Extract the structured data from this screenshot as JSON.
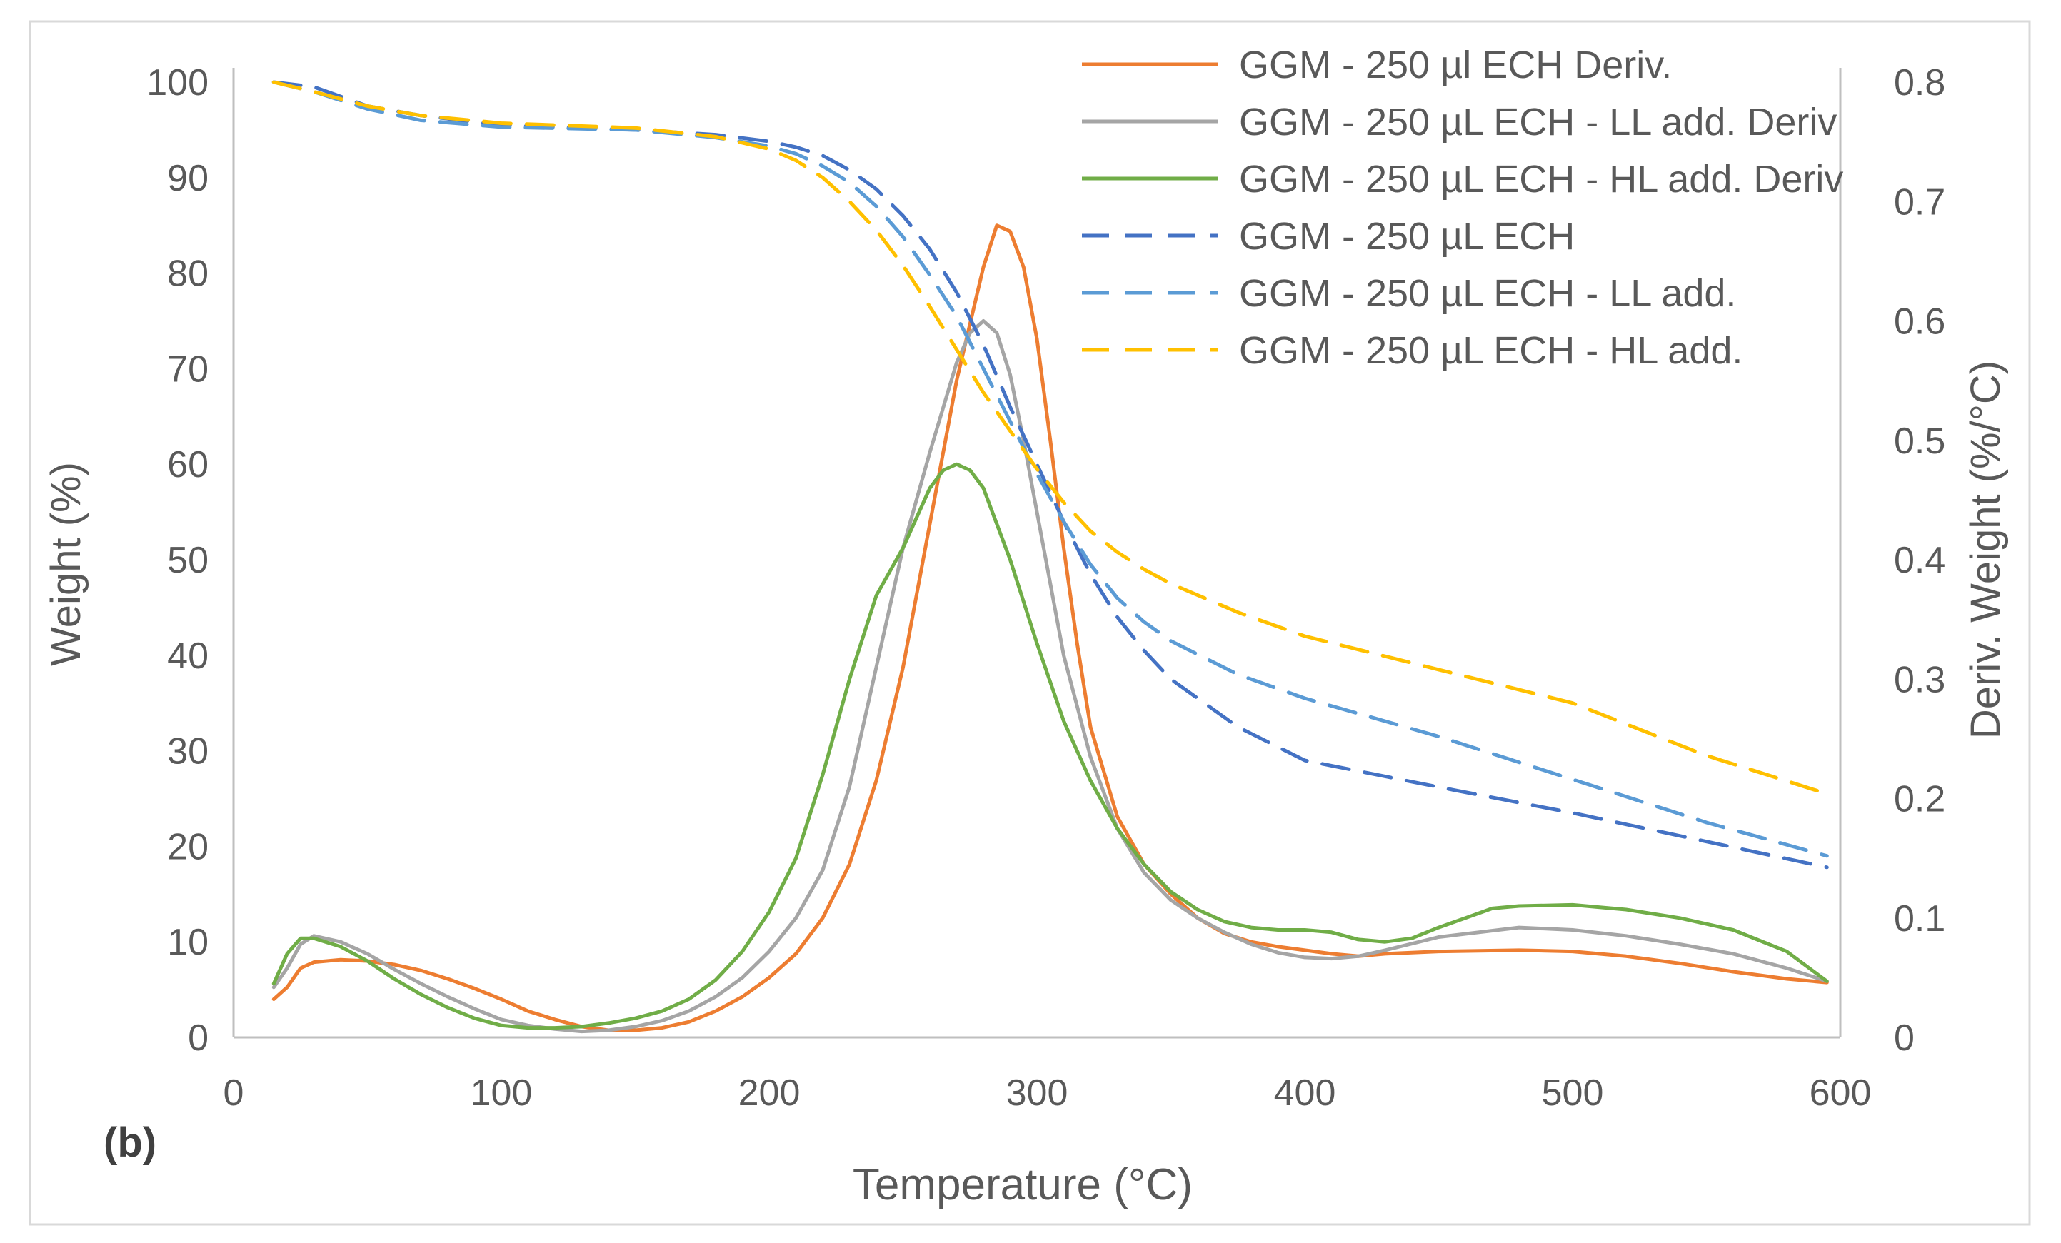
{
  "chart_data": {
    "type": "line",
    "panel_label": "(b)",
    "xlabel": "Temperature (°C)",
    "ylabel": "Weight (%)",
    "y2label": "Deriv. Weight (%/°C)",
    "xlim": [
      0,
      600
    ],
    "ylim": [
      0,
      100
    ],
    "y2lim": [
      0,
      0.8
    ],
    "x_ticks": [
      "0",
      "100",
      "200",
      "300",
      "400",
      "500",
      "600"
    ],
    "y_ticks": [
      "0",
      "10",
      "20",
      "30",
      "40",
      "50",
      "60",
      "70",
      "80",
      "90",
      "100"
    ],
    "y2_ticks": [
      "0",
      "0.1",
      "0.2",
      "0.3",
      "0.4",
      "0.5",
      "0.6",
      "0.7",
      "0.8"
    ],
    "legend_position": "top-right",
    "series": [
      {
        "name": "GGM - 250 µl ECH Deriv.",
        "axis": "right",
        "dash": false,
        "color": "#ED7D31",
        "x": [
          15,
          20,
          25,
          30,
          40,
          50,
          60,
          70,
          80,
          90,
          100,
          110,
          120,
          130,
          140,
          150,
          160,
          170,
          180,
          190,
          200,
          210,
          220,
          230,
          240,
          250,
          260,
          270,
          280,
          285,
          290,
          295,
          300,
          305,
          310,
          315,
          320,
          330,
          340,
          350,
          360,
          370,
          380,
          390,
          400,
          410,
          420,
          430,
          450,
          480,
          500,
          520,
          540,
          560,
          580,
          595
        ],
        "y": [
          0.032,
          0.042,
          0.058,
          0.063,
          0.065,
          0.064,
          0.061,
          0.056,
          0.049,
          0.041,
          0.032,
          0.022,
          0.015,
          0.009,
          0.006,
          0.006,
          0.008,
          0.013,
          0.022,
          0.034,
          0.05,
          0.07,
          0.1,
          0.145,
          0.215,
          0.31,
          0.43,
          0.55,
          0.645,
          0.68,
          0.675,
          0.645,
          0.585,
          0.5,
          0.41,
          0.33,
          0.26,
          0.185,
          0.145,
          0.12,
          0.1,
          0.087,
          0.08,
          0.076,
          0.073,
          0.07,
          0.068,
          0.07,
          0.072,
          0.073,
          0.072,
          0.068,
          0.062,
          0.055,
          0.049,
          0.046
        ]
      },
      {
        "name": "GGM - 250 µL ECH - LL add. Deriv",
        "axis": "right",
        "dash": false,
        "color": "#A5A5A5",
        "x": [
          15,
          20,
          25,
          30,
          40,
          50,
          60,
          70,
          80,
          90,
          100,
          110,
          120,
          130,
          140,
          150,
          160,
          170,
          180,
          190,
          200,
          210,
          220,
          230,
          240,
          250,
          260,
          270,
          275,
          280,
          285,
          290,
          295,
          300,
          310,
          320,
          330,
          340,
          350,
          360,
          370,
          380,
          390,
          400,
          410,
          420,
          430,
          450,
          480,
          500,
          520,
          540,
          560,
          580,
          595
        ],
        "y": [
          0.042,
          0.058,
          0.078,
          0.085,
          0.08,
          0.07,
          0.057,
          0.045,
          0.034,
          0.024,
          0.015,
          0.01,
          0.007,
          0.005,
          0.006,
          0.009,
          0.014,
          0.022,
          0.034,
          0.05,
          0.072,
          0.1,
          0.14,
          0.21,
          0.31,
          0.41,
          0.49,
          0.565,
          0.59,
          0.6,
          0.59,
          0.555,
          0.5,
          0.44,
          0.32,
          0.235,
          0.175,
          0.138,
          0.115,
          0.1,
          0.088,
          0.078,
          0.071,
          0.067,
          0.066,
          0.068,
          0.073,
          0.084,
          0.092,
          0.09,
          0.085,
          0.078,
          0.07,
          0.058,
          0.047
        ]
      },
      {
        "name": "GGM - 250 µL ECH - HL add. Deriv",
        "axis": "right",
        "dash": false,
        "color": "#70AD47",
        "x": [
          15,
          20,
          25,
          30,
          40,
          50,
          60,
          70,
          80,
          90,
          100,
          110,
          120,
          130,
          140,
          150,
          160,
          170,
          180,
          190,
          200,
          210,
          220,
          230,
          240,
          250,
          260,
          265,
          270,
          275,
          280,
          290,
          300,
          310,
          320,
          330,
          340,
          350,
          360,
          370,
          380,
          390,
          400,
          410,
          420,
          430,
          440,
          450,
          460,
          470,
          480,
          500,
          520,
          540,
          560,
          580,
          595
        ],
        "y": [
          0.045,
          0.07,
          0.083,
          0.083,
          0.076,
          0.064,
          0.049,
          0.036,
          0.025,
          0.016,
          0.01,
          0.008,
          0.008,
          0.009,
          0.012,
          0.016,
          0.022,
          0.032,
          0.048,
          0.072,
          0.105,
          0.15,
          0.22,
          0.3,
          0.37,
          0.41,
          0.46,
          0.475,
          0.48,
          0.475,
          0.46,
          0.4,
          0.33,
          0.265,
          0.215,
          0.175,
          0.145,
          0.122,
          0.107,
          0.097,
          0.092,
          0.09,
          0.09,
          0.088,
          0.082,
          0.08,
          0.083,
          0.092,
          0.1,
          0.108,
          0.11,
          0.111,
          0.107,
          0.1,
          0.09,
          0.072,
          0.047
        ]
      },
      {
        "name": "GGM - 250 µL ECH",
        "axis": "left",
        "dash": true,
        "color": "#4472C4",
        "x": [
          15,
          30,
          50,
          70,
          100,
          150,
          180,
          200,
          210,
          220,
          230,
          240,
          250,
          260,
          270,
          280,
          290,
          300,
          310,
          320,
          330,
          340,
          350,
          375,
          400,
          450,
          500,
          550,
          595
        ],
        "y": [
          100,
          99.5,
          97.5,
          96.5,
          95.5,
          95,
          94.5,
          93.8,
          93.2,
          92.3,
          90.8,
          88.8,
          86,
          82.5,
          78,
          72.5,
          66,
          60,
          54,
          48.5,
          44,
          40.5,
          37.5,
          32.5,
          29,
          26.2,
          23.5,
          20.5,
          17.8
        ]
      },
      {
        "name": "GGM - 250 µL ECH - LL add.",
        "axis": "left",
        "dash": true,
        "color": "#5B9BD5",
        "x": [
          15,
          30,
          50,
          70,
          100,
          150,
          180,
          200,
          210,
          220,
          230,
          240,
          250,
          260,
          270,
          280,
          290,
          300,
          310,
          320,
          330,
          340,
          350,
          375,
          400,
          450,
          500,
          550,
          595
        ],
        "y": [
          100,
          99,
          97.2,
          96,
          95.3,
          95,
          94.2,
          93.3,
          92.5,
          91.2,
          89.5,
          87,
          83.8,
          79.8,
          75.5,
          70,
          64.5,
          59,
          54,
          49.5,
          46,
          43.5,
          41.5,
          38,
          35.5,
          31.5,
          27,
          22.5,
          19
        ]
      },
      {
        "name": "GGM - 250 µL ECH - HL add.",
        "axis": "left",
        "dash": true,
        "color": "#FFC000",
        "x": [
          15,
          30,
          50,
          70,
          100,
          150,
          180,
          200,
          210,
          220,
          230,
          240,
          250,
          260,
          270,
          280,
          290,
          300,
          310,
          320,
          330,
          340,
          350,
          375,
          400,
          450,
          500,
          550,
          595
        ],
        "y": [
          100,
          99,
          97.5,
          96.5,
          95.7,
          95.2,
          94.3,
          93,
          91.8,
          90,
          87.5,
          84.5,
          80.8,
          76.5,
          72,
          67.5,
          63.5,
          59.5,
          56,
          53,
          50.8,
          49,
          47.5,
          44.5,
          42,
          38.5,
          35,
          29.5,
          25.5
        ]
      }
    ]
  }
}
